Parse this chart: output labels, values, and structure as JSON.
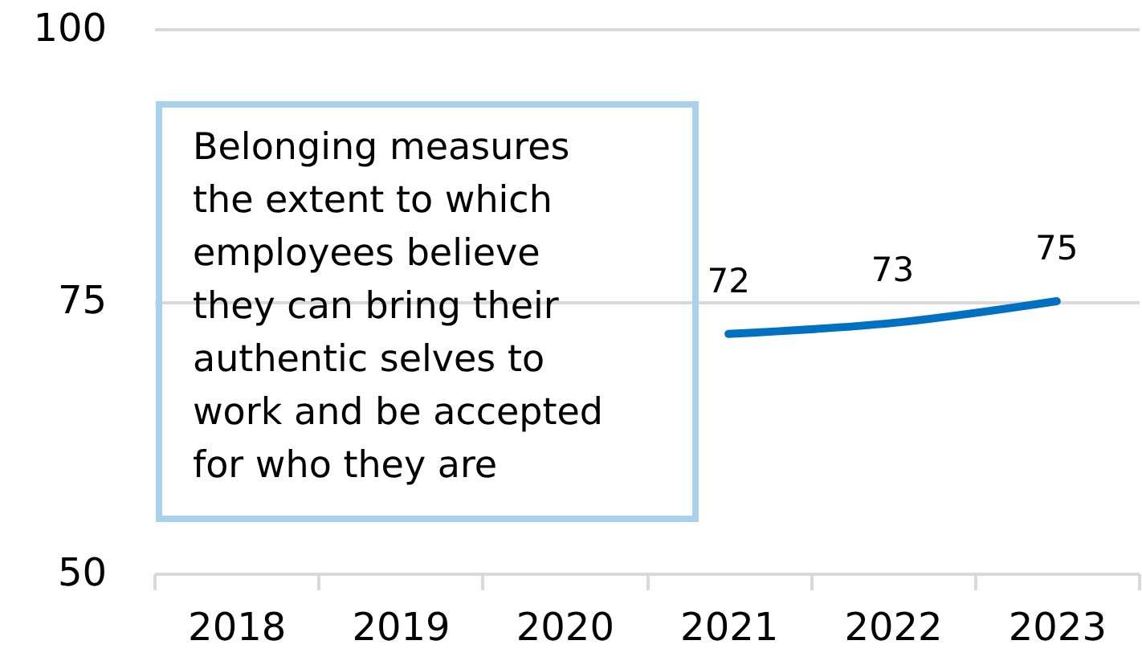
{
  "chart_data": {
    "type": "line",
    "categories": [
      "2018",
      "2019",
      "2020",
      "2021",
      "2022",
      "2023"
    ],
    "series": [
      {
        "color": "#0070c0",
        "values": [
          null,
          null,
          null,
          72,
          73,
          75
        ]
      }
    ],
    "ylim": [
      50,
      100
    ],
    "yticks": [
      50,
      75,
      100
    ],
    "grid": "y",
    "data_labels": true,
    "annotations": [
      "Belonging measures the extent to which employees believe they can bring their authentic selves to work and be accepted for who they are"
    ]
  }
}
